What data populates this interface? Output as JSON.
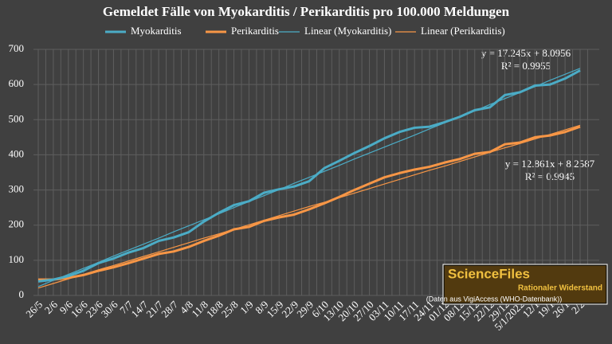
{
  "chart_data": {
    "type": "line",
    "title": "Gemeldet Fälle von Myokarditis / Perikarditis pro 100.000 Meldungen",
    "categories": [
      "26/5",
      "2/6",
      "9/6",
      "16/6",
      "23/6",
      "30/6",
      "7/7",
      "14/7",
      "21/7",
      "28/7",
      "4/8",
      "11/8",
      "18/8",
      "25/8",
      "1/9",
      "8/9",
      "15/9",
      "22/9",
      "29/9",
      "6/10",
      "13/10",
      "20/10",
      "27/10",
      "03/11",
      "10/11",
      "17/11",
      "24/11",
      "01/12",
      "08/12",
      "15/12",
      "22/12",
      "29/12",
      "5/1/2022",
      "12/1",
      "19/1",
      "26/1",
      "2/2"
    ],
    "series": [
      {
        "name": "Myokarditis",
        "color": "#4bacc6",
        "width": 3,
        "values": [
          40,
          45,
          55,
          70,
          92,
          105,
          122,
          135,
          155,
          165,
          180,
          210,
          235,
          257,
          268,
          292,
          302,
          310,
          325,
          362,
          383,
          405,
          425,
          447,
          465,
          477,
          480,
          493,
          508,
          527,
          535,
          570,
          578,
          597,
          600,
          617,
          640
        ]
      },
      {
        "name": "Perikarditis",
        "color": "#f79646",
        "width": 3,
        "values": [
          45,
          45,
          50,
          58,
          70,
          80,
          92,
          105,
          118,
          125,
          138,
          155,
          170,
          188,
          195,
          212,
          222,
          230,
          245,
          262,
          280,
          300,
          318,
          336,
          348,
          358,
          366,
          378,
          388,
          403,
          408,
          430,
          435,
          450,
          455,
          465,
          480
        ]
      },
      {
        "name": "Linear (Myokarditis)",
        "color": "#4bacc6",
        "width": 1.2,
        "values": [
          25,
          43,
          60,
          77,
          94,
          112,
          129,
          146,
          163,
          181,
          198,
          215,
          232,
          250,
          267,
          284,
          301,
          319,
          336,
          353,
          370,
          388,
          405,
          422,
          439,
          456,
          474,
          491,
          508,
          525,
          543,
          560,
          577,
          594,
          612,
          629,
          646
        ]
      },
      {
        "name": "Linear (Perikarditis)",
        "color": "#f79646",
        "width": 1.2,
        "values": [
          21,
          34,
          47,
          60,
          73,
          85,
          98,
          111,
          124,
          137,
          150,
          163,
          175,
          188,
          201,
          214,
          227,
          240,
          253,
          265,
          278,
          291,
          304,
          317,
          330,
          343,
          356,
          368,
          381,
          394,
          407,
          420,
          432,
          445,
          458,
          471,
          484
        ]
      }
    ],
    "ylim": [
      0,
      700
    ],
    "yticks": [
      0,
      100,
      200,
      300,
      400,
      500,
      600,
      700
    ],
    "grid": true,
    "annotations": [
      "y = 17.245x + 8.0956",
      "R² = 0.9955",
      "y = 12.861x + 8.2587",
      "R² = 0.9945"
    ],
    "logo": {
      "title": "ScienceFiles",
      "subtitle": "Rationaler Widerstand",
      "source": "(Daten aus VigiAccess (WHO-Datenbank))"
    }
  }
}
